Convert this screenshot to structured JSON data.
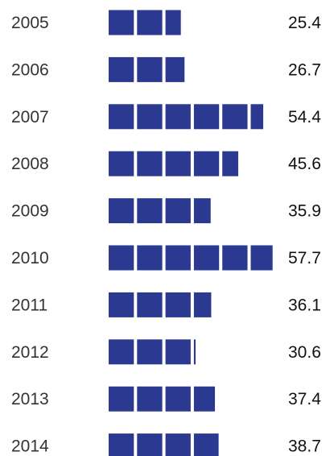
{
  "chart_data": {
    "type": "bar",
    "orientation": "horizontal",
    "style": "pictograph-blocks",
    "unit_per_block": 10,
    "categories": [
      "2005",
      "2006",
      "2007",
      "2008",
      "2009",
      "2010",
      "2011",
      "2012",
      "2013",
      "2014"
    ],
    "values": [
      25.4,
      26.7,
      54.4,
      45.6,
      35.9,
      57.7,
      36.1,
      30.6,
      37.4,
      38.7
    ],
    "value_labels": [
      "25.4",
      "26.7",
      "54.4",
      "45.6",
      "35.9",
      "57.7",
      "36.1",
      "30.6",
      "37.4",
      "38.7"
    ],
    "title": "",
    "xlabel": "",
    "ylabel": "",
    "grid": false,
    "legend": "none",
    "colors": {
      "bar": "#2B3990",
      "year_text": "#333333",
      "value_text": "#111111",
      "background": "#ffffff"
    }
  }
}
